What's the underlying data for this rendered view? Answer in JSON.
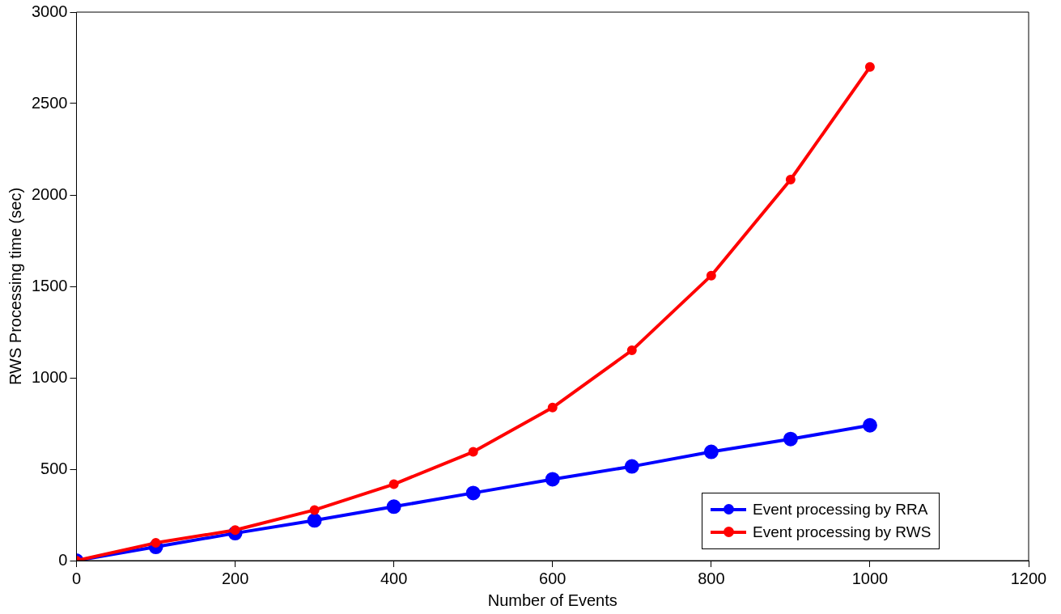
{
  "chart_data": {
    "type": "line",
    "xlabel": "Number of Events",
    "ylabel": "RWS Processing time (sec)",
    "x": [
      0,
      100,
      200,
      300,
      400,
      500,
      600,
      700,
      800,
      900,
      1000
    ],
    "series": [
      {
        "name": "Event processing by RRA",
        "color": "#0000ff",
        "values": [
          0,
          75,
          150,
          220,
          295,
          370,
          445,
          515,
          595,
          665,
          740
        ]
      },
      {
        "name": "Event processing by RWS",
        "color": "#ff0000",
        "values": [
          0,
          97,
          167,
          277,
          418,
          595,
          837,
          1150,
          1559,
          2084,
          2700
        ]
      }
    ],
    "xlim": [
      0,
      1200
    ],
    "xticks": [
      0,
      200,
      400,
      600,
      800,
      1000,
      1200
    ],
    "ylim": [
      0,
      3000
    ],
    "yticks": [
      0,
      500,
      1000,
      1500,
      2000,
      2500,
      3000
    ],
    "grid": false,
    "legend": "bottom right",
    "marker": "circle",
    "line_style": "solid"
  }
}
